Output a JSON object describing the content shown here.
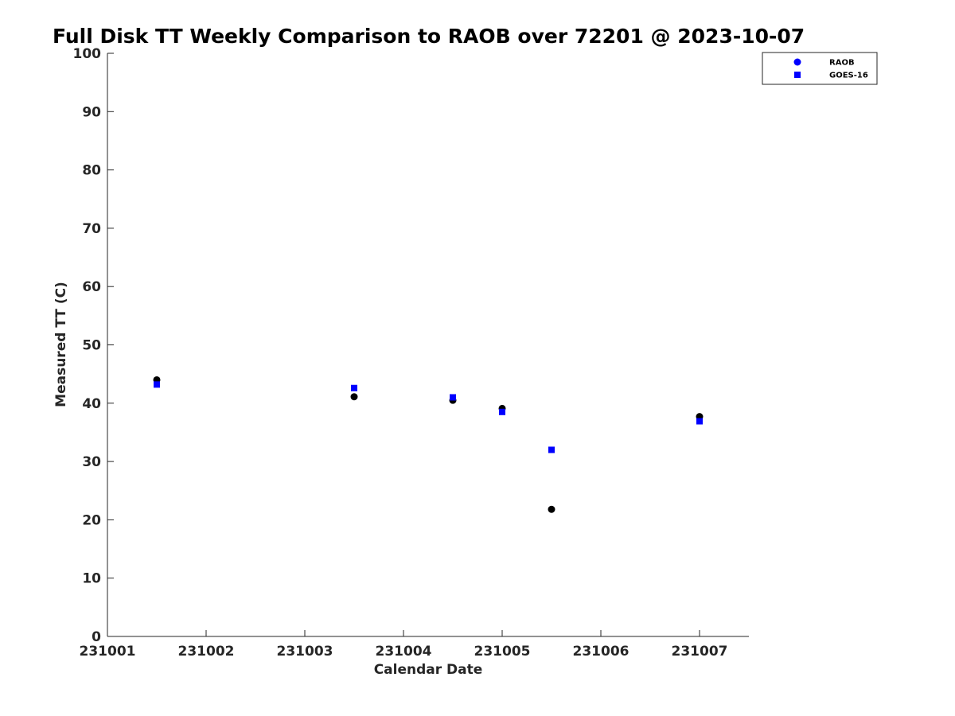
{
  "chart_data": {
    "type": "scatter",
    "title": "Full Disk TT Weekly Comparison to RAOB over 72201 @ 2023-10-07",
    "xlabel": "Calendar Date",
    "ylabel": "Measured TT (C)",
    "xlim": [
      0,
      6.5
    ],
    "ylim": [
      0,
      100
    ],
    "x_ticks": [
      {
        "value": 0,
        "label": "231001"
      },
      {
        "value": 1,
        "label": "231002"
      },
      {
        "value": 2,
        "label": "231003"
      },
      {
        "value": 3,
        "label": "231004"
      },
      {
        "value": 4,
        "label": "231005"
      },
      {
        "value": 5,
        "label": "231006"
      },
      {
        "value": 6,
        "label": "231007"
      }
    ],
    "y_ticks": [
      {
        "value": 0,
        "label": "0"
      },
      {
        "value": 10,
        "label": "10"
      },
      {
        "value": 20,
        "label": "20"
      },
      {
        "value": 30,
        "label": "30"
      },
      {
        "value": 40,
        "label": "40"
      },
      {
        "value": 50,
        "label": "50"
      },
      {
        "value": 60,
        "label": "60"
      },
      {
        "value": 70,
        "label": "70"
      },
      {
        "value": 80,
        "label": "80"
      },
      {
        "value": 90,
        "label": "90"
      },
      {
        "value": 100,
        "label": "100"
      }
    ],
    "grid": false,
    "legend_position": "top-right",
    "legend": [
      {
        "label": "RAOB",
        "marker": "circle",
        "color": "#0000ff"
      },
      {
        "label": "GOES-16",
        "marker": "square",
        "color": "#0000ff"
      }
    ],
    "series": [
      {
        "name": "RAOB",
        "marker": "circle",
        "color": "#000000",
        "points": [
          {
            "x": 0.5,
            "y": 44.0
          },
          {
            "x": 2.5,
            "y": 41.1
          },
          {
            "x": 3.5,
            "y": 40.5
          },
          {
            "x": 4.0,
            "y": 39.1
          },
          {
            "x": 4.5,
            "y": 21.8
          },
          {
            "x": 6.0,
            "y": 37.7
          }
        ]
      },
      {
        "name": "GOES-16",
        "marker": "square",
        "color": "#0000ff",
        "points": [
          {
            "x": 0.5,
            "y": 43.2
          },
          {
            "x": 2.5,
            "y": 42.6
          },
          {
            "x": 3.5,
            "y": 41.0
          },
          {
            "x": 4.0,
            "y": 38.5
          },
          {
            "x": 4.5,
            "y": 32.0
          },
          {
            "x": 6.0,
            "y": 36.9
          }
        ]
      }
    ]
  }
}
